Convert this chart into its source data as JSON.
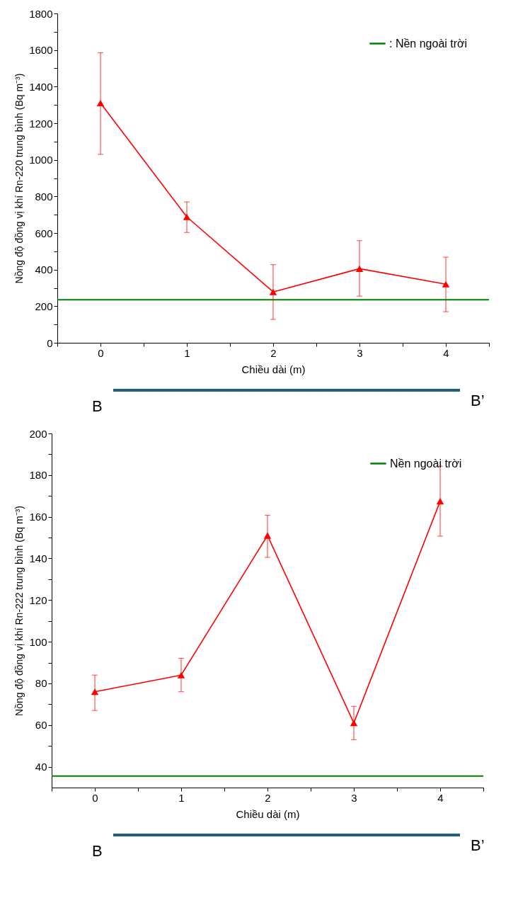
{
  "chart_data": [
    {
      "type": "line",
      "xlabel": "Chiều dài (m)",
      "ylabel": "Nồng độ đồng vị khí Rn-220 trung bình (Bq m⁻³)",
      "x": [
        0,
        1,
        2,
        3,
        4
      ],
      "series": [
        {
          "color": "#ff0000",
          "values": [
            1310,
            688,
            278,
            405,
            320
          ],
          "errors": [
            [
              1030,
              1585
            ],
            [
              603,
              770
            ],
            [
              128,
              427
            ],
            [
              255,
              558
            ],
            [
              170,
              468
            ]
          ]
        }
      ],
      "xlim": [
        -0.5,
        4.5
      ],
      "xticks": [
        {
          "value": -0.5,
          "label": null
        },
        0,
        {
          "value": 0.5,
          "label": null
        },
        1,
        {
          "value": 1.5,
          "label": null
        },
        2,
        {
          "value": 2.5,
          "label": null
        },
        3,
        {
          "value": 3.5,
          "label": null
        },
        4,
        {
          "value": 4.5,
          "label": null
        }
      ],
      "ylim": [
        0,
        1800
      ],
      "yticks": [
        0,
        {
          "value": 100,
          "label": null
        },
        200,
        {
          "value": 300,
          "label": null
        },
        400,
        {
          "value": 500,
          "label": null
        },
        600,
        {
          "value": 700,
          "label": null
        },
        800,
        {
          "value": 900,
          "label": null
        },
        1000,
        {
          "value": 1100,
          "label": null
        },
        1200,
        {
          "value": 1300,
          "label": null
        },
        1400,
        {
          "value": 1500,
          "label": null
        },
        1600,
        {
          "value": 1700,
          "label": null
        },
        1800
      ],
      "ref_lines": [
        {
          "axis": "y",
          "value": 235,
          "label": ": Nền ngoài trời",
          "color": "#008000"
        }
      ],
      "annotations": [
        "B",
        "B’"
      ],
      "marker": "triangle",
      "grid": false,
      "legend": "top right"
    },
    {
      "type": "line",
      "xlabel": "Chiều dài (m)",
      "ylabel": "Nồng độ đồng vị khí Rn-222 trung bình (Bq m⁻³)",
      "x": [
        0,
        1,
        2,
        3,
        4
      ],
      "series": [
        {
          "color": "#ff0000",
          "values": [
            76,
            84,
            151,
            61,
            167.5
          ],
          "errors": [
            [
              67,
              84
            ],
            [
              76,
              92
            ],
            [
              140.5,
              160.7
            ],
            [
              53,
              69
            ],
            [
              150.7,
              184.3
            ]
          ]
        }
      ],
      "xlim": [
        -0.5,
        4.5
      ],
      "xticks": [
        {
          "value": -0.5,
          "label": null
        },
        0,
        {
          "value": 0.5,
          "label": null
        },
        1,
        {
          "value": 1.5,
          "label": null
        },
        2,
        {
          "value": 2.5,
          "label": null
        },
        3,
        {
          "value": 3.5,
          "label": null
        },
        4,
        {
          "value": 4.5,
          "label": null
        }
      ],
      "ylim": [
        30,
        200
      ],
      "yticks": [
        40,
        {
          "value": 50,
          "label": null
        },
        60,
        {
          "value": 70,
          "label": null
        },
        80,
        {
          "value": 90,
          "label": null
        },
        100,
        {
          "value": 110,
          "label": null
        },
        120,
        {
          "value": 130,
          "label": null
        },
        140,
        {
          "value": 150,
          "label": null
        },
        160,
        {
          "value": 170,
          "label": null
        },
        180,
        {
          "value": 190,
          "label": null
        },
        200
      ],
      "ref_lines": [
        {
          "axis": "y",
          "value": 35.5,
          "label": "Nền ngoài trời",
          "color": "#008000"
        }
      ],
      "annotations": [
        "B",
        "B’"
      ],
      "marker": "triangle",
      "grid": false,
      "legend": "top right"
    }
  ]
}
